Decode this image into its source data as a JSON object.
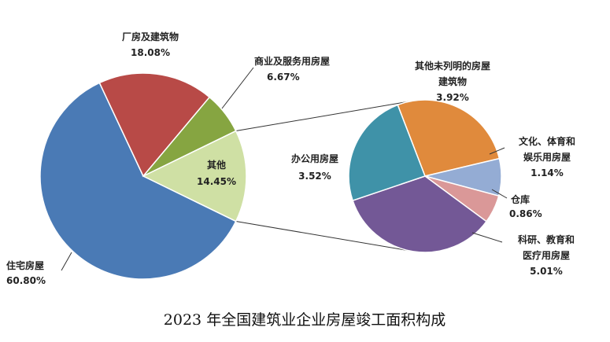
{
  "chart_data": {
    "type": "pie",
    "title": "2023 年全国建筑业企业房屋竣工面积构成",
    "main_pie": {
      "slices": [
        {
          "name": "住宅房屋",
          "value": 60.8,
          "label": "60.80%",
          "color": "#4a7ab5"
        },
        {
          "name": "厂房及建筑物",
          "value": 18.08,
          "label": "18.08%",
          "color": "#b84a47"
        },
        {
          "name": "商业及服务用房屋",
          "value": 6.67,
          "label": "6.67%",
          "color": "#86a541"
        },
        {
          "name": "其他",
          "value": 14.45,
          "label": "14.45%",
          "color": "#cfe0a4"
        }
      ]
    },
    "sub_pie": {
      "of": "其他",
      "slices": [
        {
          "name": "其他未列明的房屋建筑物",
          "value": 3.92,
          "label": "3.92%",
          "color": "#e08a3c"
        },
        {
          "name": "文化、体育和娱乐用房屋",
          "value": 1.14,
          "label": "1.14%",
          "color": "#94acd4"
        },
        {
          "name": "仓库",
          "value": 0.86,
          "label": "0.86%",
          "color": "#da9898"
        },
        {
          "name": "科研、教育和医疗用房屋",
          "value": 5.01,
          "label": "5.01%",
          "color": "#735896"
        },
        {
          "name": "办公用房屋",
          "value": 3.52,
          "label": "3.52%",
          "color": "#3f92a8"
        }
      ]
    }
  },
  "labels": {
    "residential": {
      "name": "住宅房屋",
      "pct": "60.80%"
    },
    "factory": {
      "name": "厂房及建筑物",
      "pct": "18.08%"
    },
    "commercial": {
      "name": "商业及服务用房屋",
      "pct": "6.67%"
    },
    "other": {
      "name": "其他",
      "pct": "14.45%"
    },
    "unlisted": {
      "line1": "其他未列明的房屋",
      "line2": "建筑物",
      "pct": "3.92%"
    },
    "culture": {
      "line1": "文化、体育和",
      "line2": "娱乐用房屋",
      "pct": "1.14%"
    },
    "warehouse": {
      "name": "仓库",
      "pct": "0.86%"
    },
    "research": {
      "line1": "科研、教育和",
      "line2": "医疗用房屋",
      "pct": "5.01%"
    },
    "office": {
      "name": "办公用房屋",
      "pct": "3.52%"
    }
  }
}
